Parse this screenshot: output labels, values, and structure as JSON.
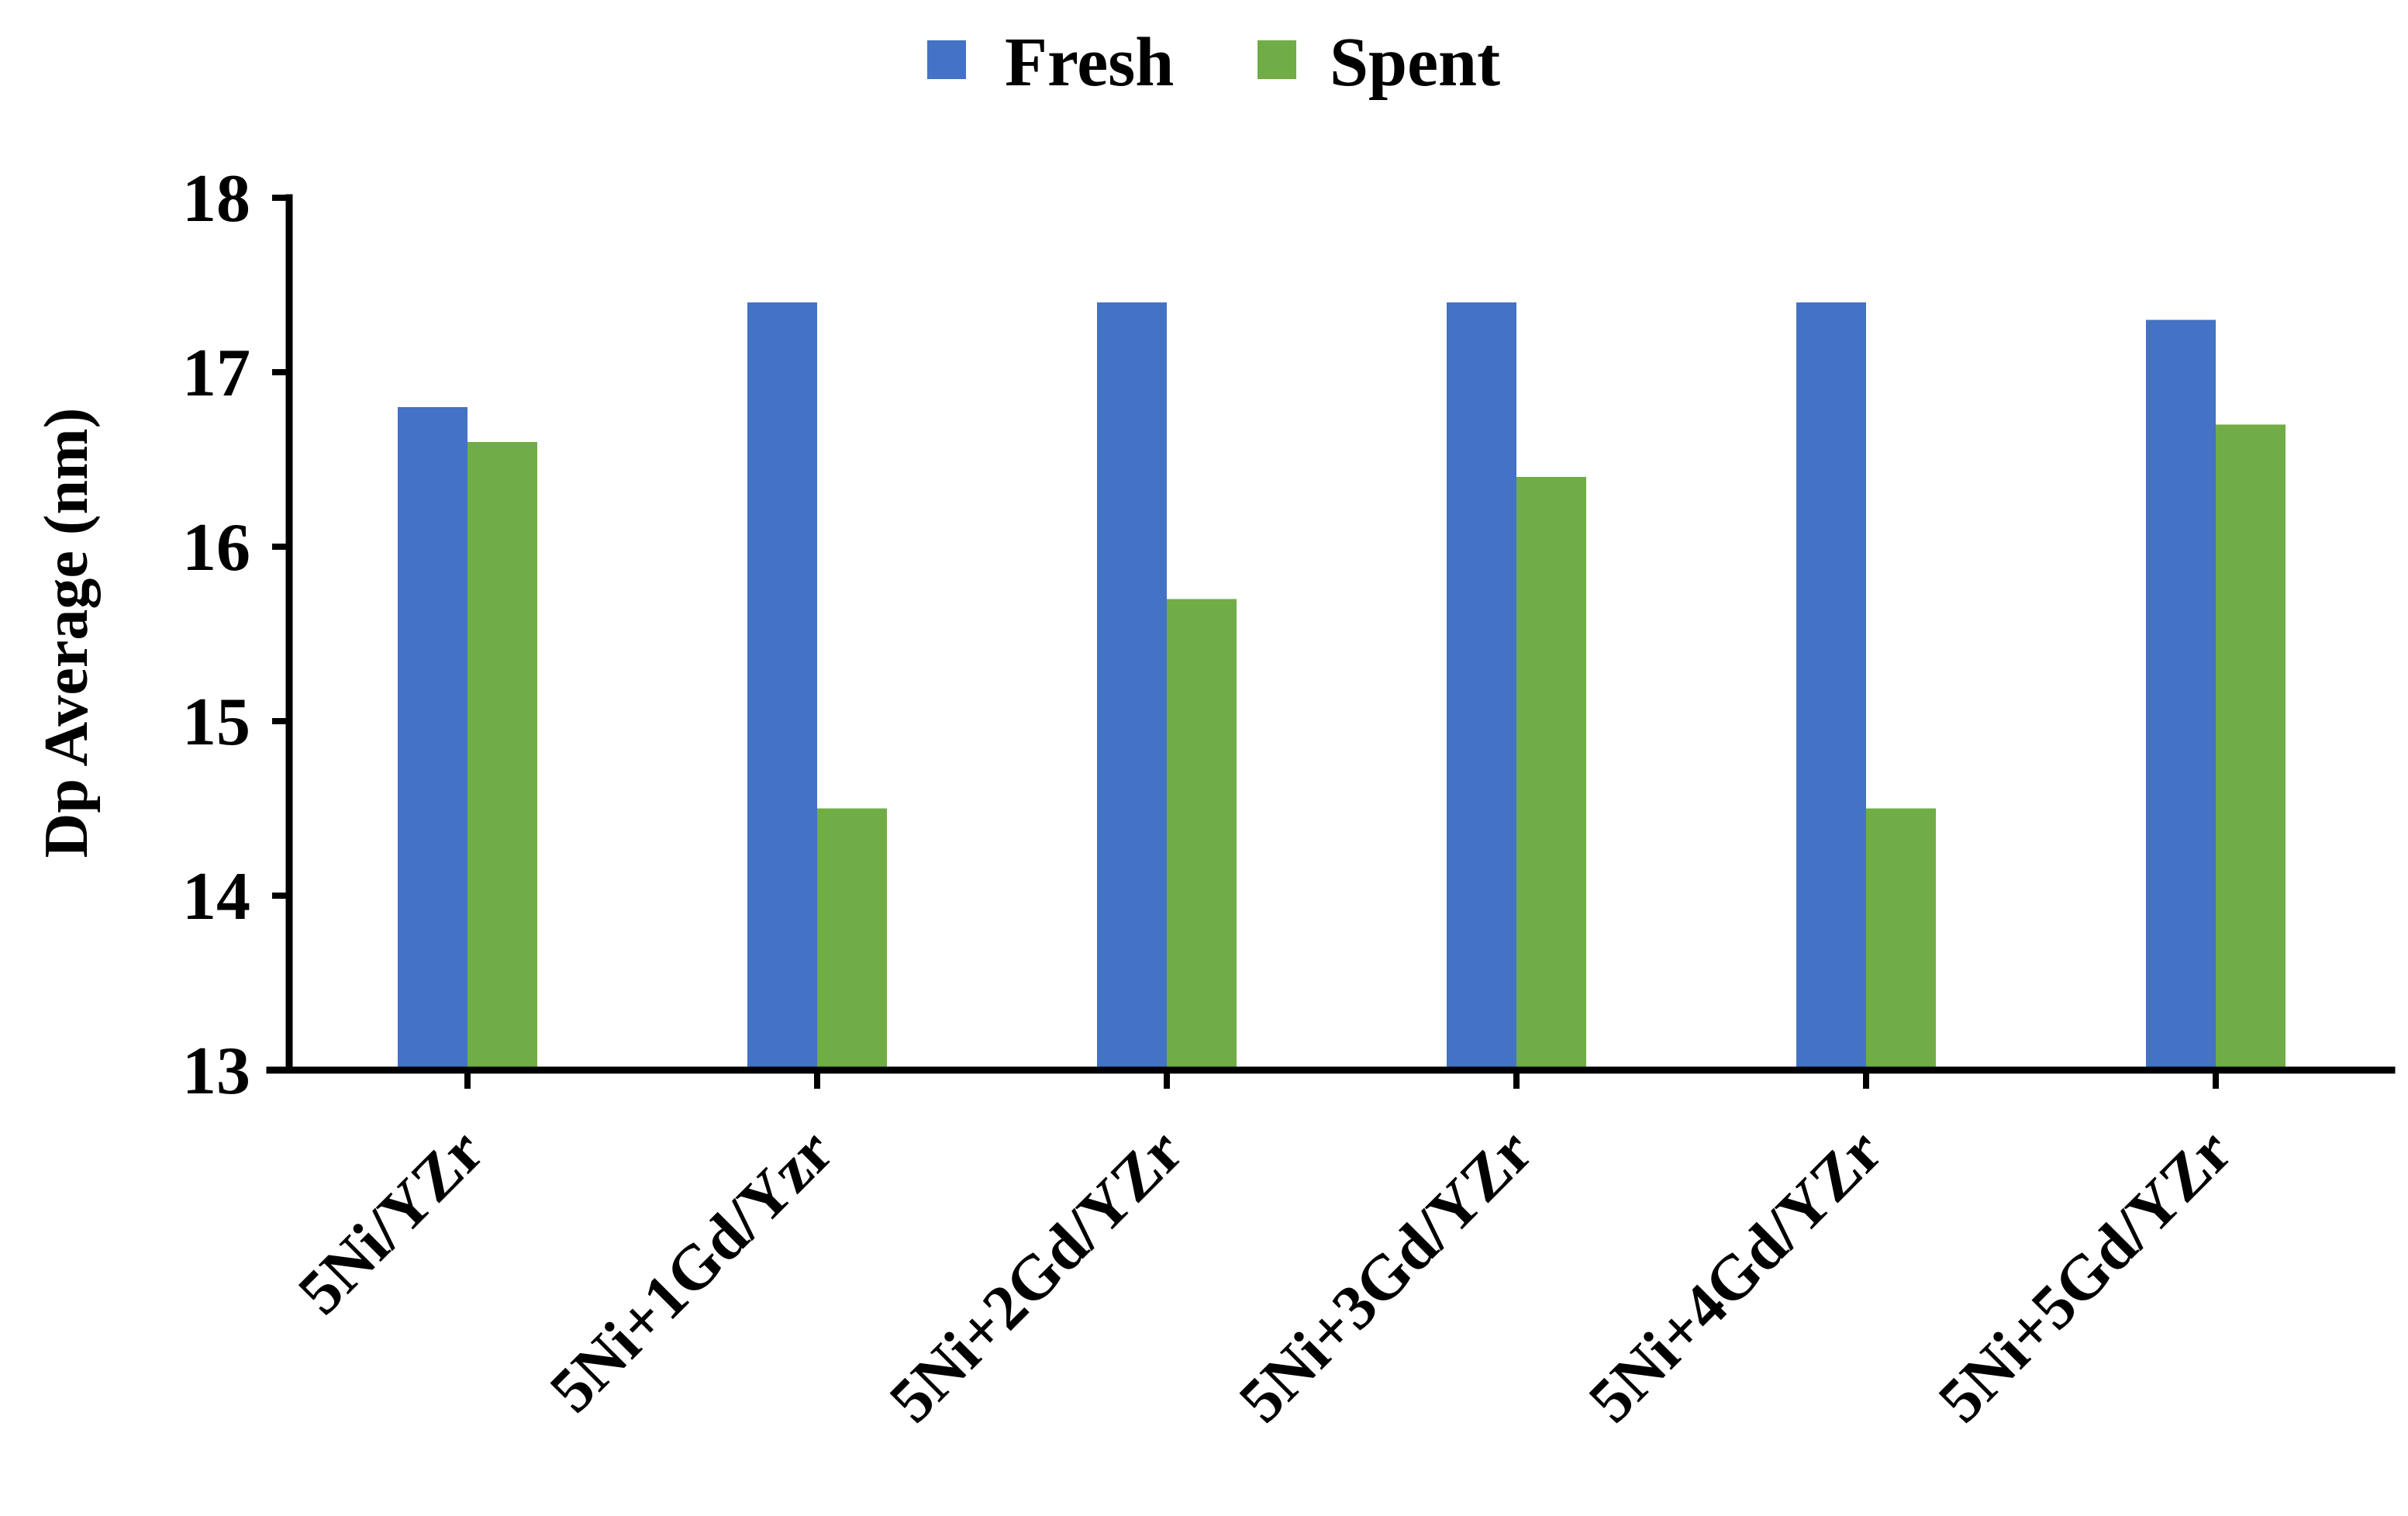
{
  "chart_data": {
    "type": "bar",
    "title": "",
    "xlabel": "",
    "ylabel": "Dp Average (nm)",
    "categories": [
      "5Ni/YZr",
      "5Ni+1Gd/Yzr",
      "5Ni+2Gd/YZr",
      "5Ni+3Gd/YZr",
      "5Ni+4Gd/YZr",
      "5Ni+5Gd/YZr"
    ],
    "series": [
      {
        "name": "Fresh",
        "color": "#4472C4",
        "values": [
          16.8,
          17.4,
          17.4,
          17.4,
          17.4,
          17.3
        ]
      },
      {
        "name": "Spent",
        "color": "#70AD47",
        "values": [
          16.6,
          14.5,
          15.7,
          16.4,
          14.5,
          16.7
        ]
      }
    ],
    "ylim": [
      13,
      18
    ],
    "yticks": [
      "13",
      "14",
      "15",
      "16",
      "17",
      "18"
    ],
    "grid": false,
    "legend": "top-center"
  }
}
